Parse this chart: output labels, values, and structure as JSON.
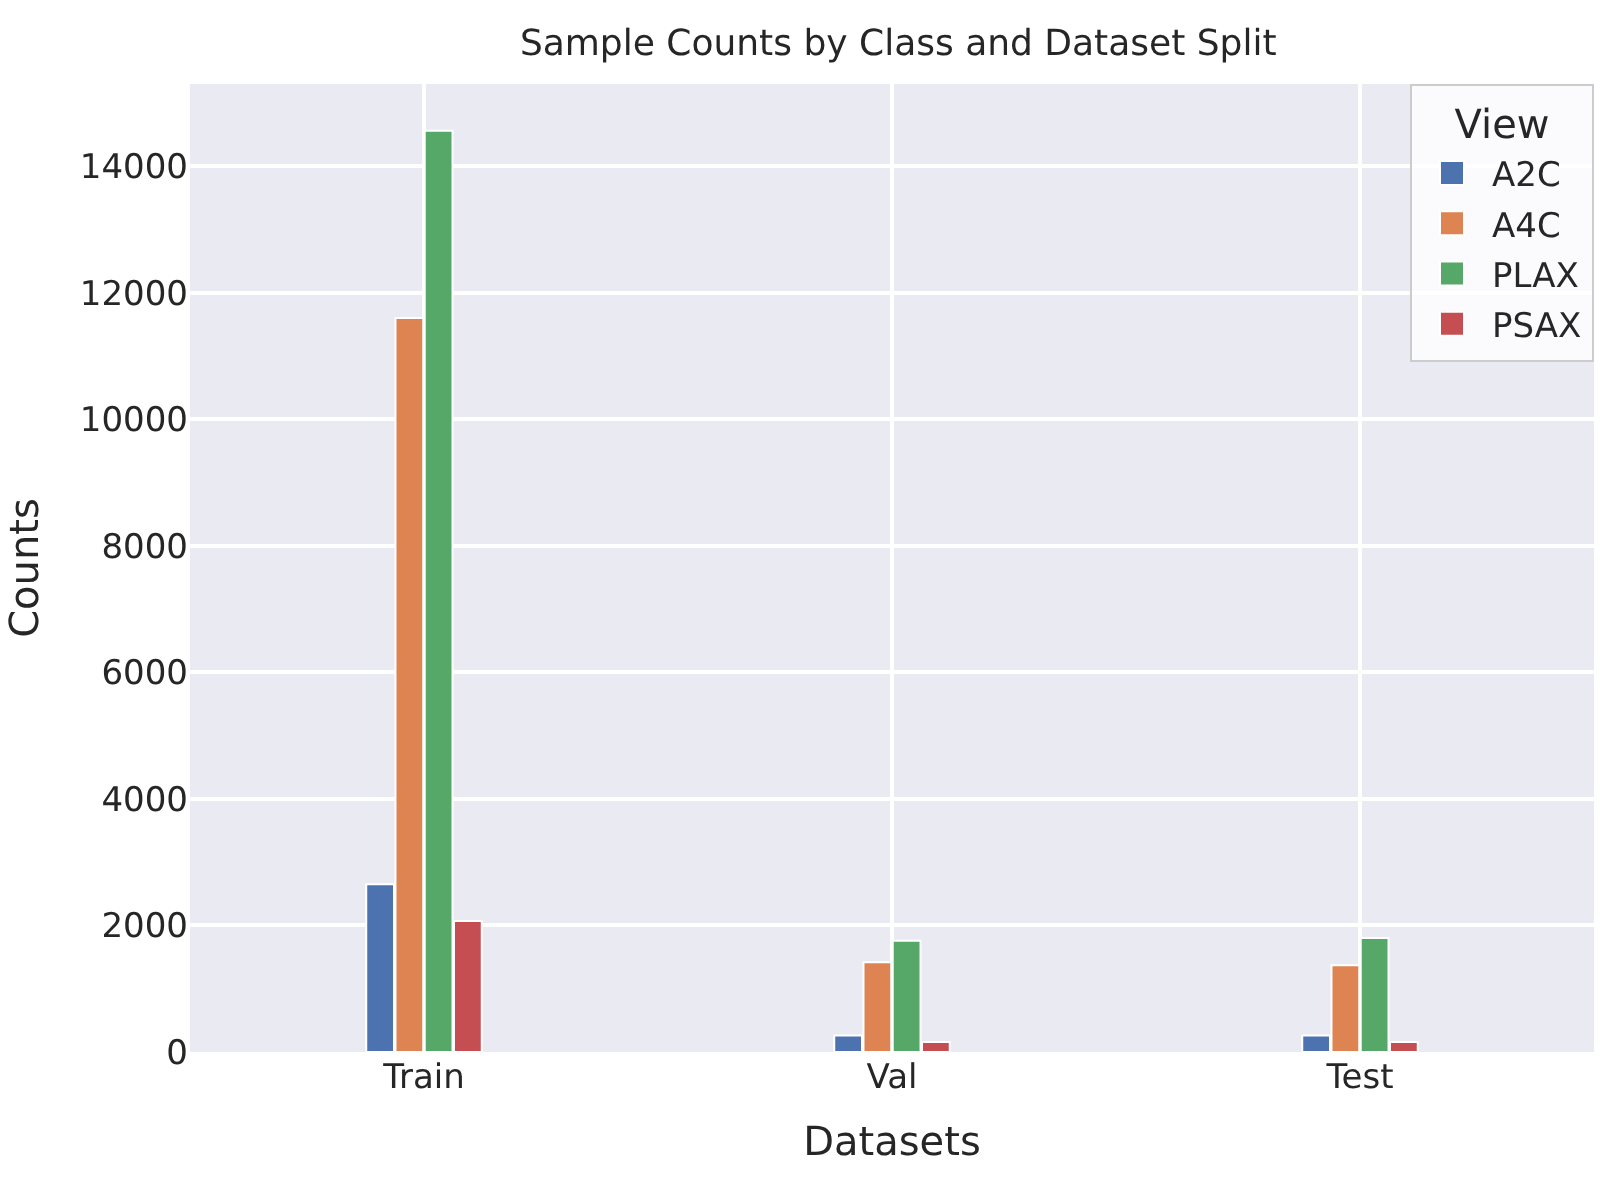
{
  "chart_data": {
    "type": "bar",
    "title": "Sample Counts by Class and Dataset Split",
    "xlabel": "Datasets",
    "ylabel": "Counts",
    "legend_title": "View",
    "categories": [
      "Train",
      "Val",
      "Test"
    ],
    "series": [
      {
        "name": "A2C",
        "color": "#4c72b0",
        "values": [
          2650,
          260,
          260
        ]
      },
      {
        "name": "A4C",
        "color": "#dd8452",
        "values": [
          11600,
          1420,
          1370
        ]
      },
      {
        "name": "PLAX",
        "color": "#55a868",
        "values": [
          14560,
          1760,
          1800
        ]
      },
      {
        "name": "PSAX",
        "color": "#c44e52",
        "values": [
          2070,
          160,
          160
        ]
      }
    ],
    "ylim": [
      0,
      15300
    ],
    "yticks": [
      0,
      2000,
      4000,
      6000,
      8000,
      10000,
      12000,
      14000
    ],
    "grid": true,
    "legend": "top right"
  }
}
